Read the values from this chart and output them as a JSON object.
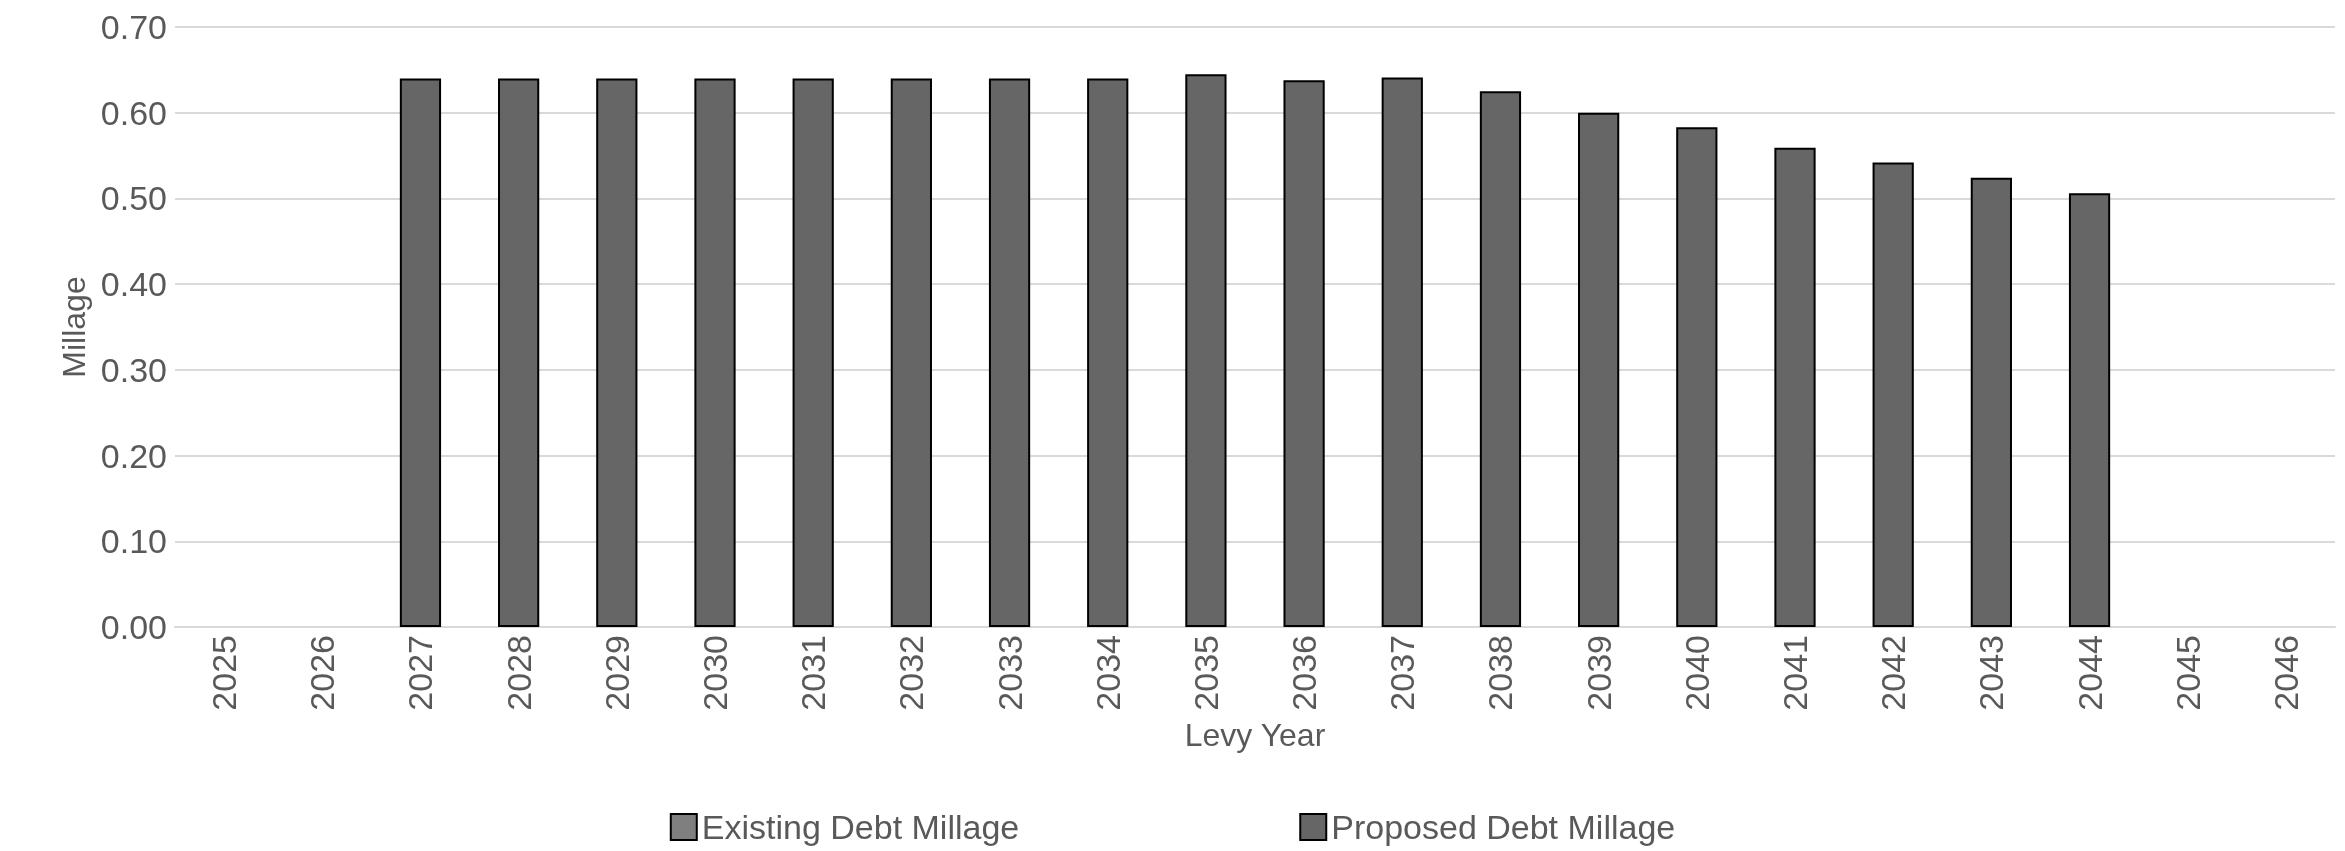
{
  "chart_data": {
    "type": "bar",
    "xlabel": "Levy Year",
    "ylabel": "Millage",
    "stacked": true,
    "legend": "bottom",
    "grid": "y",
    "categories": [
      "2025",
      "2026",
      "2027",
      "2028",
      "2029",
      "2030",
      "2031",
      "2032",
      "2033",
      "2034",
      "2035",
      "2036",
      "2037",
      "2038",
      "2039",
      "2040",
      "2041",
      "2042",
      "2043",
      "2044",
      "2045",
      "2046"
    ],
    "series": [
      {
        "name": "Existing Debt Millage",
        "color": "#7f7f7f",
        "values": [
          null,
          null,
          null,
          null,
          null,
          null,
          null,
          null,
          null,
          null,
          null,
          null,
          null,
          null,
          null,
          null,
          null,
          null,
          null,
          null,
          null,
          null
        ]
      },
      {
        "name": "Proposed Debt Millage",
        "color": "#666666",
        "values": [
          null,
          null,
          0.64,
          0.64,
          0.64,
          0.64,
          0.64,
          0.64,
          0.64,
          0.64,
          0.645,
          0.638,
          0.641,
          0.625,
          0.6,
          0.583,
          0.559,
          0.542,
          0.524,
          0.506,
          null,
          null
        ]
      }
    ],
    "ylim": [
      0,
      0.7
    ],
    "yticks": [
      {
        "value": 0,
        "label": "0.00"
      },
      {
        "value": 0.1,
        "label": "0.10"
      },
      {
        "value": 0.2,
        "label": "0.20"
      },
      {
        "value": 0.3,
        "label": "0.30"
      },
      {
        "value": 0.4,
        "label": "0.40"
      },
      {
        "value": 0.5,
        "label": "0.50"
      },
      {
        "value": 0.6,
        "label": "0.60"
      },
      {
        "value": 0.7,
        "label": "0.70"
      }
    ]
  }
}
